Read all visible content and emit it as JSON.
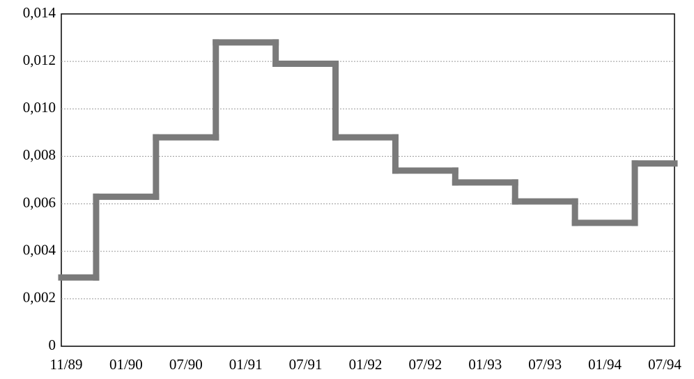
{
  "chart_data": {
    "type": "step",
    "categories": [
      "11/89",
      "01/90",
      "07/90",
      "01/91",
      "07/91",
      "01/92",
      "07/92",
      "01/93",
      "07/93",
      "01/94",
      "07/94"
    ],
    "values": [
      0.0029,
      0.0063,
      0.0088,
      0.0128,
      0.0119,
      0.0088,
      0.0074,
      0.0069,
      0.0061,
      0.0052,
      0.0077
    ],
    "color": "#7a7a7a",
    "ylim": [
      0,
      0.014
    ],
    "yticks": [
      0,
      {
        "value": 0.002,
        "label": "0,002"
      },
      {
        "value": 0.004,
        "label": "0,004"
      },
      {
        "value": 0.006,
        "label": "0,006"
      },
      {
        "value": 0.008,
        "label": "0,008"
      },
      {
        "value": 0.01,
        "label": "0,010"
      },
      {
        "value": 0.012,
        "label": "0,012"
      },
      {
        "value": 0.014,
        "label": "0,014"
      }
    ],
    "grid": true
  }
}
